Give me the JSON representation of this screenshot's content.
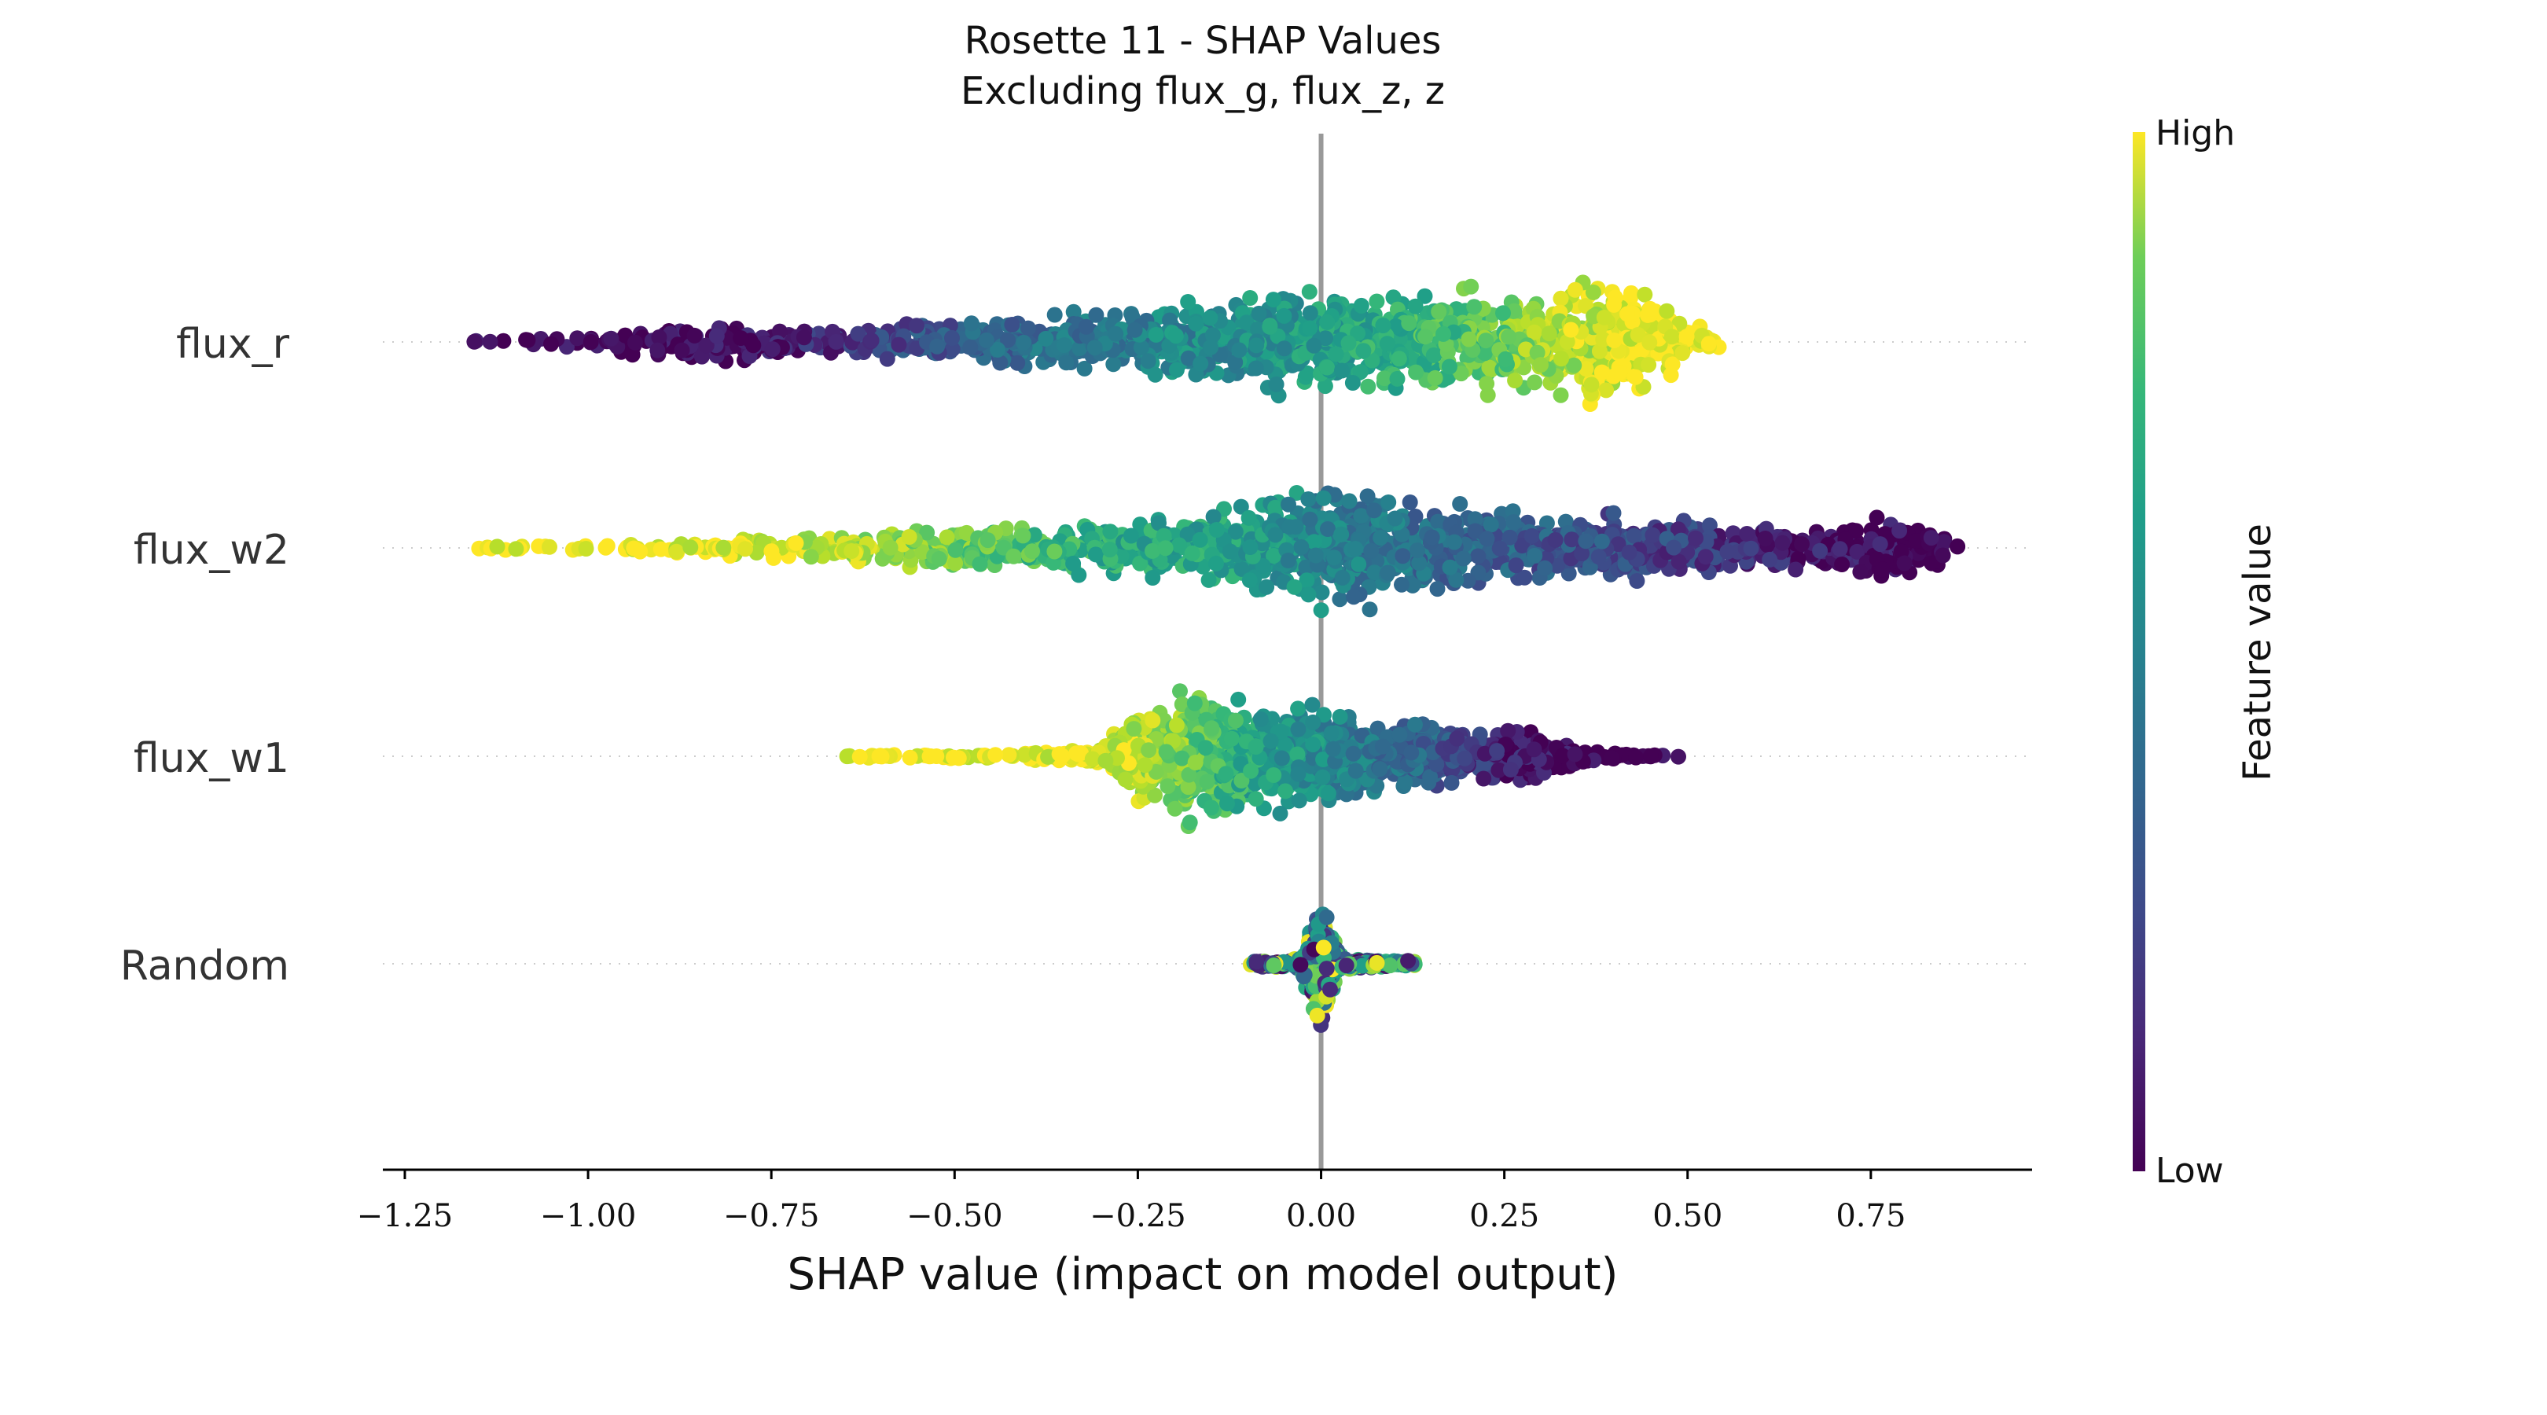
{
  "chart_data": {
    "type": "scatter",
    "subtype": "shap-beeswarm",
    "title": "Rosette 11 - SHAP Values",
    "subtitle": "Excluding flux_g, flux_z, z",
    "xlabel": "SHAP value (impact on model output)",
    "xlim": [
      -1.28,
      0.97
    ],
    "xticks": [
      -1.25,
      -1.0,
      -0.75,
      -0.5,
      -0.25,
      0.0,
      0.25,
      0.5,
      0.75
    ],
    "xtick_labels": [
      "−1.25",
      "−1.00",
      "−0.75",
      "−0.50",
      "−0.25",
      "0.00",
      "0.25",
      "0.50",
      "0.75"
    ],
    "zero_line": 0.0,
    "colorbar": {
      "label": "Feature value",
      "high_label": "High",
      "low_label": "Low",
      "colormap": "viridis"
    },
    "colors": [
      "#440154",
      "#3b528b",
      "#21918c",
      "#5ec962",
      "#fde725"
    ],
    "features": [
      {
        "name": "flux_r",
        "min": -1.16,
        "max": 0.55,
        "profile": [
          [
            -1.16,
            0.02
          ],
          [
            -1.0,
            0.08
          ],
          [
            -0.85,
            0.3
          ],
          [
            -0.75,
            0.2
          ],
          [
            -0.5,
            0.3
          ],
          [
            -0.25,
            0.45
          ],
          [
            0.0,
            0.75
          ],
          [
            0.05,
            0.65
          ],
          [
            0.2,
            0.7
          ],
          [
            0.3,
            0.6
          ],
          [
            0.4,
            1.0
          ],
          [
            0.5,
            0.3
          ],
          [
            0.55,
            0.05
          ]
        ],
        "colormap_points": [
          [
            -1.16,
            0.0
          ],
          [
            -0.8,
            0.03
          ],
          [
            -0.55,
            0.25
          ],
          [
            -0.3,
            0.42
          ],
          [
            0.0,
            0.55
          ],
          [
            0.2,
            0.72
          ],
          [
            0.35,
            0.9
          ],
          [
            0.45,
            1.0
          ],
          [
            0.55,
            1.0
          ]
        ]
      },
      {
        "name": "flux_w2",
        "min": -1.18,
        "max": 0.88,
        "profile": [
          [
            -1.18,
            0.02
          ],
          [
            -0.9,
            0.08
          ],
          [
            -0.7,
            0.2
          ],
          [
            -0.5,
            0.3
          ],
          [
            -0.25,
            0.4
          ],
          [
            -0.1,
            0.6
          ],
          [
            0.0,
            1.0
          ],
          [
            0.1,
            0.7
          ],
          [
            0.3,
            0.5
          ],
          [
            0.5,
            0.4
          ],
          [
            0.7,
            0.3
          ],
          [
            0.8,
            0.55
          ],
          [
            0.88,
            0.05
          ]
        ],
        "colormap_points": [
          [
            -1.18,
            1.0
          ],
          [
            -0.8,
            0.97
          ],
          [
            -0.55,
            0.82
          ],
          [
            -0.3,
            0.62
          ],
          [
            -0.1,
            0.56
          ],
          [
            0.0,
            0.45
          ],
          [
            0.25,
            0.3
          ],
          [
            0.5,
            0.18
          ],
          [
            0.7,
            0.05
          ],
          [
            0.88,
            0.0
          ]
        ]
      },
      {
        "name": "flux_w1",
        "min": -0.68,
        "max": 0.49,
        "profile": [
          [
            -0.68,
            0.02
          ],
          [
            -0.4,
            0.05
          ],
          [
            -0.3,
            0.15
          ],
          [
            -0.25,
            0.6
          ],
          [
            -0.18,
            1.0
          ],
          [
            -0.1,
            0.8
          ],
          [
            0.0,
            0.7
          ],
          [
            0.1,
            0.5
          ],
          [
            0.2,
            0.4
          ],
          [
            0.3,
            0.3
          ],
          [
            0.38,
            0.1
          ],
          [
            0.42,
            0.03
          ]
        ],
        "colormap_points": [
          [
            -0.68,
            1.0
          ],
          [
            -0.3,
            0.97
          ],
          [
            -0.2,
            0.82
          ],
          [
            -0.1,
            0.6
          ],
          [
            0.0,
            0.48
          ],
          [
            0.15,
            0.3
          ],
          [
            0.25,
            0.08
          ],
          [
            0.4,
            0.0
          ],
          [
            0.49,
            0.0
          ]
        ]
      },
      {
        "name": "Random",
        "min": -0.1,
        "max": 0.13,
        "profile": [
          [
            -0.1,
            0.05
          ],
          [
            -0.03,
            0.08
          ],
          [
            0.0,
            1.0
          ],
          [
            0.03,
            0.08
          ],
          [
            0.13,
            0.05
          ]
        ],
        "colormap_points": [
          [
            -0.1,
            0.5
          ],
          [
            0.13,
            0.5
          ]
        ]
      }
    ]
  }
}
